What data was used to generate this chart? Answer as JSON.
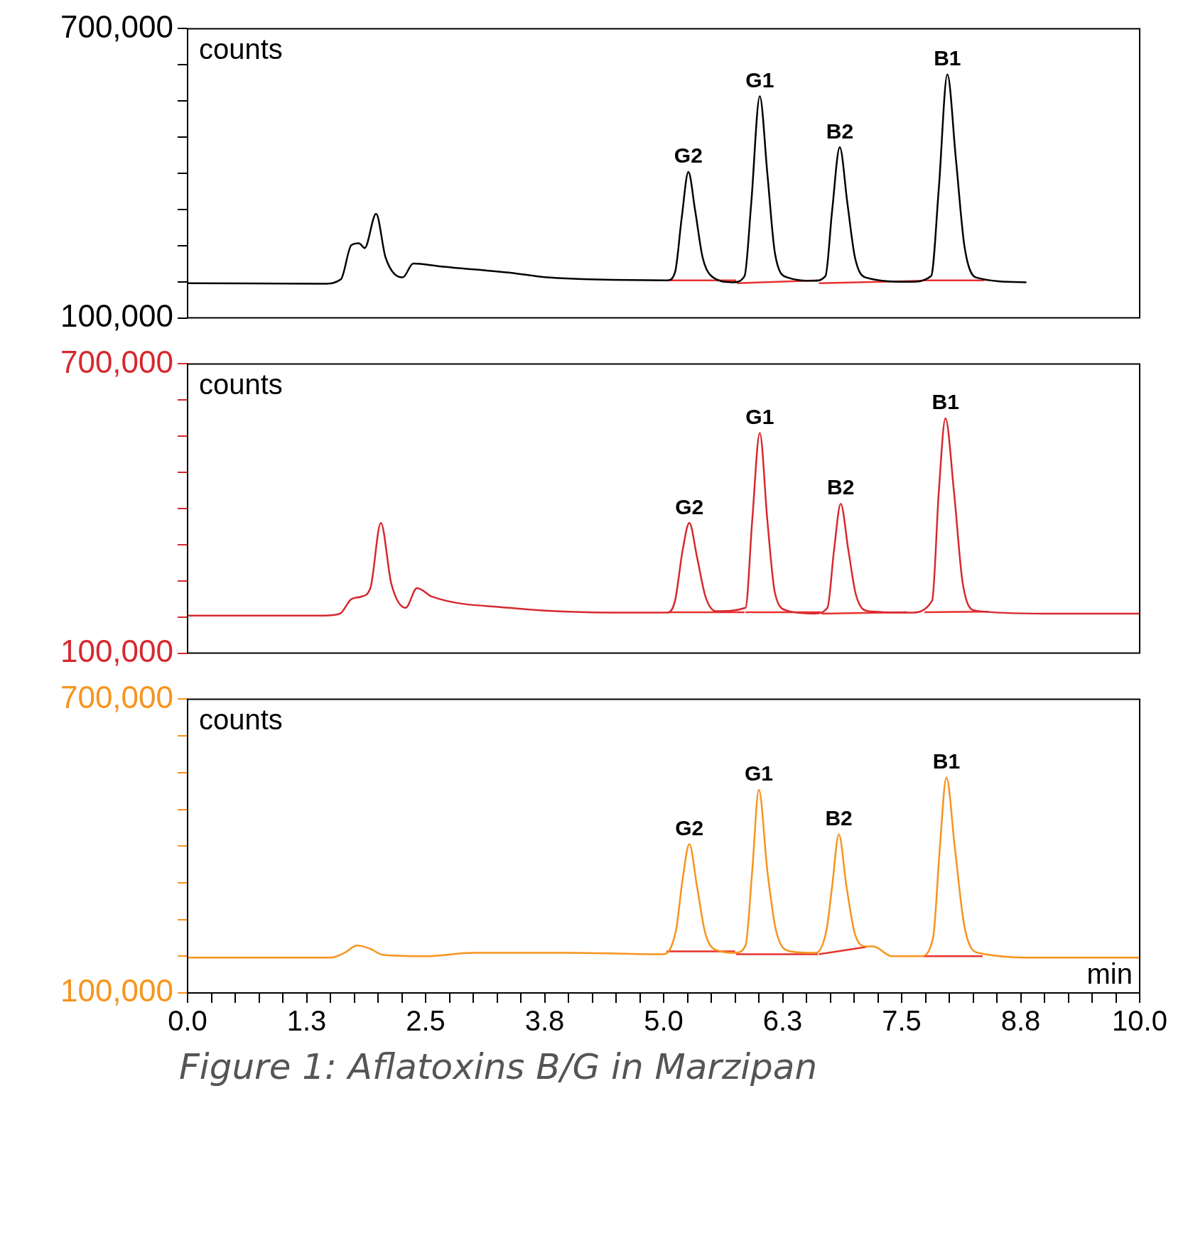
{
  "chart_data": [
    {
      "type": "line",
      "ylabel": "counts",
      "xlim": [
        0,
        10
      ],
      "ylim": [
        100000,
        700000
      ],
      "yticks": [
        {
          "value": 100000,
          "label": "100,000"
        },
        {
          "value": 175000,
          "label": null
        },
        {
          "value": 250000,
          "label": null
        },
        {
          "value": 325000,
          "label": null
        },
        {
          "value": 400000,
          "label": null
        },
        {
          "value": 475000,
          "label": null
        },
        {
          "value": 550000,
          "label": null
        },
        {
          "value": 625000,
          "label": null
        },
        {
          "value": 700000,
          "label": "700,000"
        }
      ],
      "tick_labels": "y",
      "grid": false,
      "legend": false,
      "series": [
        {
          "color": "#000000",
          "x": [
            0,
            1.43,
            1.61,
            1.72,
            1.8,
            1.86,
            1.98,
            2.08,
            2.26,
            2.37,
            2.65,
            3.46,
            3.78,
            5.04,
            5.12,
            5.19,
            5.26,
            5.33,
            5.41,
            5.5,
            5.73,
            5.85,
            5.92,
            6.01,
            6.09,
            6.17,
            6.3,
            6.58,
            6.7,
            6.77,
            6.85,
            6.93,
            7.01,
            7.12,
            7.59,
            7.81,
            7.89,
            7.98,
            8.07,
            8.16,
            8.28,
            8.81
          ],
          "values": [
            172000,
            171000,
            180000,
            251000,
            255000,
            245000,
            316000,
            225000,
            184000,
            213000,
            207000,
            192000,
            184000,
            178000,
            195000,
            308000,
            403000,
            324000,
            225000,
            187000,
            174000,
            187000,
            338000,
            560000,
            398000,
            233000,
            184000,
            177000,
            187000,
            323000,
            454000,
            338000,
            225000,
            184000,
            175000,
            187000,
            368000,
            605000,
            429000,
            248000,
            184000,
            174000
          ]
        },
        {
          "color": "#e8312f",
          "x": [
            5.06,
            5.76,
            5.765,
            5.77,
            6.62,
            6.625,
            6.63,
            7.71,
            7.715,
            7.72,
            8.37
          ],
          "values": [
            178000,
            178000,
            null,
            172000,
            178000,
            null,
            172000,
            177000,
            null,
            178000,
            178000
          ]
        }
      ],
      "annotations": [
        {
          "text": "G2",
          "x": 5.26,
          "y": 403000
        },
        {
          "text": "G1",
          "x": 6.01,
          "y": 560000
        },
        {
          "text": "B2",
          "x": 6.85,
          "y": 454000
        },
        {
          "text": "B1",
          "x": 7.98,
          "y": 605000
        }
      ]
    },
    {
      "type": "line",
      "ylabel": "counts",
      "xlim": [
        0,
        10
      ],
      "ylim": [
        100000,
        700000
      ],
      "yticks": [
        {
          "value": 100000,
          "label": "100,000"
        },
        {
          "value": 175000,
          "label": null
        },
        {
          "value": 250000,
          "label": null
        },
        {
          "value": 325000,
          "label": null
        },
        {
          "value": 400000,
          "label": null
        },
        {
          "value": 475000,
          "label": null
        },
        {
          "value": 550000,
          "label": null
        },
        {
          "value": 625000,
          "label": null
        },
        {
          "value": 700000,
          "label": "700,000"
        }
      ],
      "tick_labels": "y",
      "grid": false,
      "legend": false,
      "series": [
        {
          "color": "#d7282f",
          "x": [
            0,
            1.43,
            1.6,
            1.72,
            1.82,
            1.92,
            2.03,
            2.14,
            2.29,
            2.41,
            2.57,
            3.38,
            4.19,
            5.04,
            5.12,
            5.2,
            5.27,
            5.35,
            5.44,
            5.55,
            5.86,
            5.93,
            6.01,
            6.09,
            6.17,
            6.3,
            6.58,
            6.72,
            6.79,
            6.86,
            6.94,
            7.02,
            7.15,
            7.59,
            7.82,
            7.89,
            7.96,
            8.05,
            8.14,
            8.28,
            9.0,
            10.0
          ],
          "values": [
            178000,
            178000,
            182000,
            212000,
            217000,
            235000,
            370000,
            244000,
            194000,
            235000,
            217000,
            194000,
            185000,
            184000,
            209000,
            314000,
            370000,
            300000,
            217000,
            187000,
            194000,
            374000,
            557000,
            374000,
            224000,
            188000,
            182000,
            194000,
            314000,
            410000,
            314000,
            221000,
            187000,
            184000,
            209000,
            434000,
            587000,
            434000,
            247000,
            188000,
            182000,
            182000
          ]
        },
        {
          "color": "#e8312f",
          "x": [
            5.04,
            5.85,
            5.855,
            5.86,
            6.65,
            6.655,
            6.66,
            7.56,
            7.565,
            7.74,
            8.41
          ],
          "values": [
            185000,
            185000,
            null,
            185000,
            185000,
            null,
            182000,
            185000,
            null,
            185000,
            186000
          ]
        }
      ],
      "annotations": [
        {
          "text": "G2",
          "x": 5.27,
          "y": 370000
        },
        {
          "text": "G1",
          "x": 6.01,
          "y": 557000
        },
        {
          "text": "B2",
          "x": 6.86,
          "y": 410000
        },
        {
          "text": "B1",
          "x": 7.96,
          "y": 587000
        }
      ]
    },
    {
      "type": "line",
      "ylabel": "counts",
      "xlabel": "min",
      "xlim": [
        0,
        10
      ],
      "ylim": [
        100000,
        700000
      ],
      "yticks": [
        {
          "value": 100000,
          "label": "100,000"
        },
        {
          "value": 175000,
          "label": null
        },
        {
          "value": 250000,
          "label": null
        },
        {
          "value": 325000,
          "label": null
        },
        {
          "value": 400000,
          "label": null
        },
        {
          "value": 475000,
          "label": null
        },
        {
          "value": 550000,
          "label": null
        },
        {
          "value": 625000,
          "label": null
        },
        {
          "value": 700000,
          "label": "700,000"
        }
      ],
      "xticks": [
        {
          "value": 0,
          "label": "0.0"
        },
        {
          "value": 0.25,
          "label": null
        },
        {
          "value": 0.5,
          "label": null
        },
        {
          "value": 0.75,
          "label": null
        },
        {
          "value": 1,
          "label": null
        },
        {
          "value": 1.25,
          "label": "1.3"
        },
        {
          "value": 1.5,
          "label": null
        },
        {
          "value": 1.75,
          "label": null
        },
        {
          "value": 2,
          "label": null
        },
        {
          "value": 2.25,
          "label": null
        },
        {
          "value": 2.5,
          "label": "2.5"
        },
        {
          "value": 2.75,
          "label": null
        },
        {
          "value": 3,
          "label": null
        },
        {
          "value": 3.25,
          "label": null
        },
        {
          "value": 3.5,
          "label": null
        },
        {
          "value": 3.75,
          "label": "3.8"
        },
        {
          "value": 4,
          "label": null
        },
        {
          "value": 4.25,
          "label": null
        },
        {
          "value": 4.5,
          "label": null
        },
        {
          "value": 4.75,
          "label": null
        },
        {
          "value": 5,
          "label": "5.0"
        },
        {
          "value": 5.25,
          "label": null
        },
        {
          "value": 5.5,
          "label": null
        },
        {
          "value": 5.75,
          "label": null
        },
        {
          "value": 6,
          "label": null
        },
        {
          "value": 6.25,
          "label": "6.3"
        },
        {
          "value": 6.5,
          "label": null
        },
        {
          "value": 6.75,
          "label": null
        },
        {
          "value": 7,
          "label": null
        },
        {
          "value": 7.25,
          "label": null
        },
        {
          "value": 7.5,
          "label": "7.5"
        },
        {
          "value": 7.75,
          "label": null
        },
        {
          "value": 8,
          "label": null
        },
        {
          "value": 8.25,
          "label": null
        },
        {
          "value": 8.5,
          "label": null
        },
        {
          "value": 8.75,
          "label": "8.8"
        },
        {
          "value": 9,
          "label": null
        },
        {
          "value": 9.25,
          "label": null
        },
        {
          "value": 9.5,
          "label": null
        },
        {
          "value": 9.75,
          "label": null
        },
        {
          "value": 10,
          "label": "10.0"
        }
      ],
      "grid": false,
      "legend": false,
      "series": [
        {
          "color": "#f7941d",
          "x": [
            0,
            1.5,
            1.65,
            1.78,
            1.92,
            2.05,
            2.5,
            3.0,
            4.0,
            5.0,
            5.13,
            5.2,
            5.27,
            5.35,
            5.44,
            5.6,
            5.75,
            5.86,
            5.93,
            6.0,
            6.09,
            6.18,
            6.33,
            6.6,
            6.71,
            6.77,
            6.84,
            6.92,
            7.01,
            7.13,
            7.2,
            7.4,
            7.7,
            7.83,
            7.9,
            7.97,
            8.06,
            8.16,
            8.3,
            9.0,
            10.0
          ],
          "values": [
            172000,
            172000,
            182000,
            197000,
            190000,
            178000,
            175000,
            182000,
            182000,
            179000,
            228000,
            333000,
            404000,
            318000,
            220000,
            185000,
            182000,
            197000,
            348000,
            515000,
            348000,
            228000,
            185000,
            182000,
            228000,
            318000,
            424000,
            318000,
            220000,
            195000,
            195000,
            175000,
            175000,
            213000,
            394000,
            540000,
            394000,
            235000,
            182000,
            172000,
            172000
          ]
        },
        {
          "color": "#e8312f",
          "x": [
            5.03,
            5.75,
            5.755,
            5.76,
            6.62,
            6.625,
            6.63,
            7.13,
            7.135,
            7.72,
            8.35
          ],
          "values": [
            185000,
            185000,
            null,
            179000,
            179000,
            null,
            179000,
            194000,
            null,
            175000,
            175000
          ]
        }
      ],
      "annotations": [
        {
          "text": "G2",
          "x": 5.27,
          "y": 404000
        },
        {
          "text": "G1",
          "x": 6.0,
          "y": 515000
        },
        {
          "text": "B2",
          "x": 6.84,
          "y": 424000
        },
        {
          "text": "B1",
          "x": 7.97,
          "y": 540000
        },
        "Figure 1: Aflatoxins B/G in Marzipan"
      ]
    }
  ]
}
